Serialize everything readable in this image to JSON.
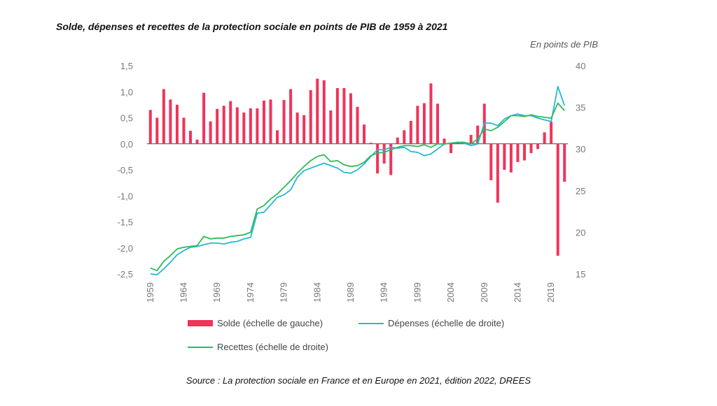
{
  "chart_data": {
    "type": "bar",
    "title": "Solde, dépenses et recettes de la protection sociale en points de PIB de 1959 à 2021",
    "unit_label": "En points de PIB",
    "source": "Source : La protection sociale en France et en Europe en 2021, édition 2022, DREES",
    "colors": {
      "solde": "#f0345a",
      "depenses": "#27b8d6",
      "recettes": "#2dbb5a"
    },
    "left_axis": {
      "ylim": [
        -2.5,
        1.5
      ],
      "ticks": [
        "1,5",
        "1,0",
        "0,5",
        "0,0",
        "-0,5",
        "-1,0",
        "-1,5",
        "-2,0",
        "-2,5"
      ],
      "values": [
        1.5,
        1.0,
        0.5,
        0.0,
        -0.5,
        -1.0,
        -1.5,
        -2.0,
        -2.5
      ]
    },
    "right_axis": {
      "ylim": [
        15,
        40
      ],
      "ticks": [
        "40",
        "35",
        "30",
        "25",
        "20",
        "15"
      ],
      "values": [
        40,
        35,
        30,
        25,
        20,
        15
      ]
    },
    "x": {
      "start": 1959,
      "end": 2021,
      "tick_labels": [
        "1959",
        "1964",
        "1969",
        "1974",
        "1979",
        "1984",
        "1989",
        "1994",
        "1999",
        "2004",
        "2009",
        "2014",
        "2019"
      ]
    },
    "legend": {
      "solde": "Solde (échelle de gauche)",
      "depenses": "Dépenses (échelle de droite)",
      "recettes": "Recettes (échelle de droite)"
    },
    "series": [
      {
        "name": "Solde (échelle de gauche)",
        "axis": "left",
        "kind": "bar",
        "values": [
          0.65,
          0.5,
          1.05,
          0.85,
          0.75,
          0.5,
          0.25,
          0.08,
          0.98,
          0.43,
          0.67,
          0.73,
          0.82,
          0.7,
          0.6,
          0.68,
          0.68,
          0.83,
          0.85,
          0.26,
          0.84,
          1.05,
          0.6,
          0.55,
          1.03,
          1.25,
          1.22,
          0.64,
          1.07,
          1.07,
          0.97,
          0.71,
          0.37,
          0.02,
          -0.57,
          -0.38,
          -0.6,
          0.12,
          0.26,
          0.44,
          0.73,
          0.78,
          1.16,
          0.77,
          0.1,
          -0.18,
          0.02,
          0.02,
          0.17,
          0.35,
          0.77,
          -0.7,
          -1.13,
          -0.5,
          -0.55,
          -0.35,
          -0.32,
          -0.18,
          -0.1,
          0.22,
          0.42,
          -2.15,
          -0.73
        ]
      },
      {
        "name": "Dépenses (échelle de droite)",
        "axis": "right",
        "kind": "line",
        "values": [
          15.0,
          14.9,
          15.6,
          16.4,
          17.3,
          17.8,
          18.2,
          18.3,
          18.5,
          18.7,
          18.7,
          18.6,
          18.8,
          18.9,
          19.2,
          19.4,
          22.3,
          22.4,
          23.3,
          24.2,
          24.5,
          25.1,
          26.6,
          27.4,
          27.7,
          28.0,
          28.3,
          28.0,
          27.7,
          27.2,
          27.1,
          27.5,
          28.2,
          29.1,
          29.9,
          29.9,
          30.2,
          30.1,
          30.2,
          29.7,
          29.6,
          29.2,
          29.4,
          30.0,
          30.6,
          30.7,
          30.8,
          30.7,
          30.4,
          30.6,
          33.1,
          33.1,
          32.8,
          33.6,
          34.0,
          34.2,
          34.0,
          34.0,
          33.7,
          33.5,
          33.3,
          37.5,
          35.2
        ]
      },
      {
        "name": "Recettes (échelle de droite)",
        "axis": "right",
        "kind": "line",
        "values": [
          15.7,
          15.4,
          16.5,
          17.2,
          18.0,
          18.2,
          18.3,
          18.4,
          19.5,
          19.2,
          19.3,
          19.3,
          19.5,
          19.6,
          19.7,
          20.0,
          22.8,
          23.2,
          24.0,
          24.6,
          25.4,
          26.2,
          27.1,
          27.9,
          28.6,
          29.1,
          29.3,
          28.5,
          28.6,
          28.1,
          27.9,
          28.0,
          28.4,
          29.2,
          29.5,
          29.6,
          29.9,
          30.2,
          30.4,
          30.4,
          30.3,
          30.5,
          30.2,
          30.6,
          30.6,
          30.7,
          30.8,
          30.8,
          30.6,
          31.2,
          32.4,
          32.2,
          32.6,
          33.3,
          34.0,
          34.0,
          33.9,
          34.1,
          33.9,
          33.8,
          33.7,
          35.5,
          34.6
        ]
      }
    ]
  }
}
